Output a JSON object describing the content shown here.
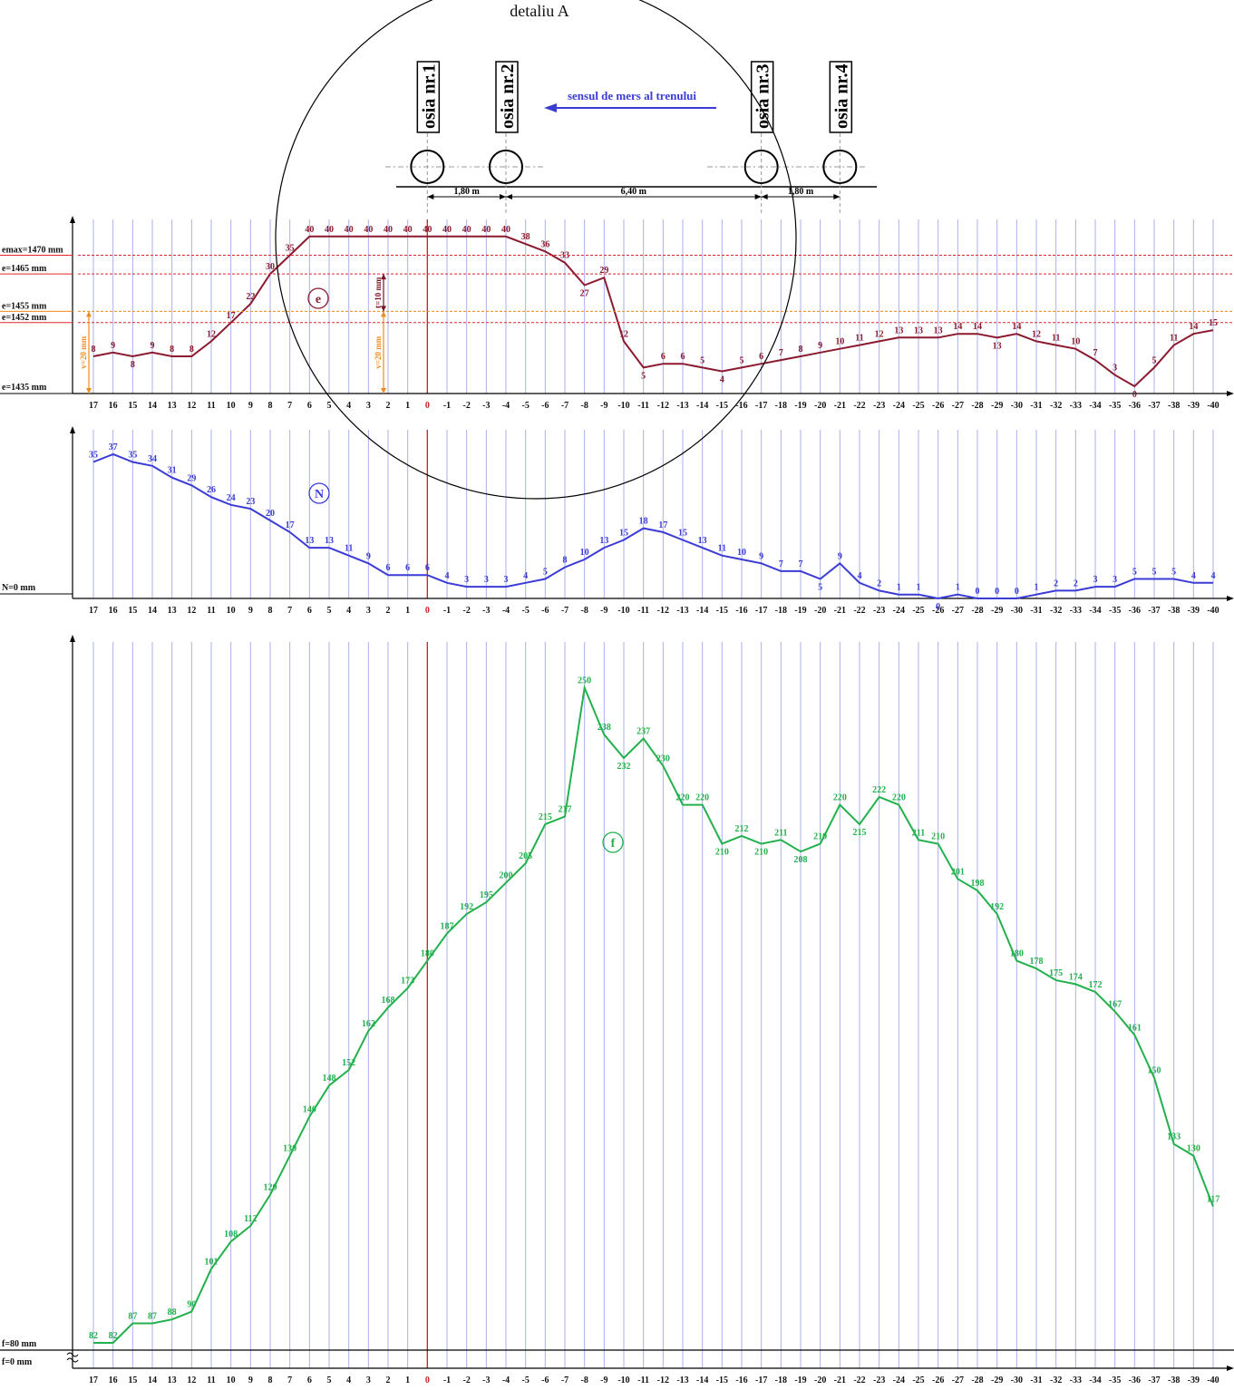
{
  "title": "detaliu A",
  "chart_data": [
    {
      "type": "schematic",
      "axles": [
        "osia nr.4",
        "osia nr.3",
        "osia nr.2",
        "osia nr.1"
      ],
      "direction_label": "sensul de mers al trenului",
      "spacings": [
        "1,80 m",
        "6,40 m",
        "1,80 m"
      ]
    },
    {
      "type": "line",
      "marker": "e",
      "x": [
        17,
        16,
        15,
        14,
        13,
        12,
        11,
        10,
        9,
        8,
        7,
        6,
        5,
        4,
        3,
        2,
        1,
        0,
        -1,
        -2,
        -3,
        -4,
        -5,
        -6,
        -7,
        -8,
        -9,
        -10,
        -11,
        -12,
        -13,
        -14,
        -15,
        -16,
        -17,
        -18,
        -19,
        -20,
        -21,
        -22,
        -23,
        -24,
        -25,
        -26,
        -27,
        -28,
        -29,
        -30,
        -31,
        -32,
        -33,
        -34,
        -35,
        -36,
        -37,
        -38,
        -39,
        -40
      ],
      "values": [
        8,
        9,
        8,
        9,
        8,
        8,
        12,
        17,
        22,
        30,
        35,
        40,
        40,
        40,
        40,
        40,
        40,
        40,
        40,
        40,
        40,
        40,
        38,
        36,
        33,
        27,
        29,
        12,
        5,
        6,
        6,
        5,
        4,
        5,
        6,
        7,
        8,
        9,
        10,
        11,
        12,
        13,
        13,
        13,
        14,
        14,
        13,
        14,
        12,
        11,
        10,
        7,
        3,
        0,
        5,
        11,
        14,
        15
      ],
      "ref_lines": [
        {
          "label": "emax=1470 mm",
          "value": 35,
          "color": "#e0282e"
        },
        {
          "label": "e=1465 mm",
          "value": 30,
          "color": "#e0282e"
        },
        {
          "label": "e=1455 mm",
          "value": 20,
          "color": "#f08a1c"
        },
        {
          "label": "e=1452 mm",
          "value": 17,
          "color": "#e0282e"
        }
      ],
      "base_label": "e=1435 mm",
      "annotations": [
        "v=20 mm",
        "t=10 mm",
        "v=20 mm"
      ],
      "color": "#8b1a2f"
    },
    {
      "type": "line",
      "marker": "N",
      "x": [
        17,
        16,
        15,
        14,
        13,
        12,
        11,
        10,
        9,
        8,
        7,
        6,
        5,
        4,
        3,
        2,
        1,
        0,
        -1,
        -2,
        -3,
        -4,
        -5,
        -6,
        -7,
        -8,
        -9,
        -10,
        -11,
        -12,
        -13,
        -14,
        -15,
        -16,
        -17,
        -18,
        -19,
        -20,
        -21,
        -22,
        -23,
        -24,
        -25,
        -26,
        -27,
        -28,
        -29,
        -30,
        -31,
        -32,
        -33,
        -34,
        -35,
        -36,
        -37,
        -38,
        -39,
        -40
      ],
      "values": [
        35,
        37,
        35,
        34,
        31,
        29,
        26,
        24,
        23,
        20,
        17,
        13,
        13,
        11,
        9,
        6,
        6,
        6,
        4,
        3,
        3,
        3,
        4,
        5,
        8,
        10,
        13,
        15,
        18,
        17,
        15,
        13,
        11,
        10,
        9,
        7,
        7,
        5,
        9,
        4,
        2,
        1,
        1,
        0,
        1,
        0,
        0,
        0,
        1,
        2,
        2,
        3,
        3,
        5,
        5,
        5,
        4,
        4
      ],
      "base_label": "N=0 mm",
      "color": "#3b3bd6"
    },
    {
      "type": "line",
      "marker": "f",
      "x": [
        17,
        16,
        15,
        14,
        13,
        12,
        11,
        10,
        9,
        8,
        7,
        6,
        5,
        4,
        3,
        2,
        1,
        0,
        -1,
        -2,
        -3,
        -4,
        -5,
        -6,
        -7,
        -8,
        -9,
        -10,
        -11,
        -12,
        -13,
        -14,
        -15,
        -16,
        -17,
        -18,
        -19,
        -20,
        -21,
        -22,
        -23,
        -24,
        -25,
        -26,
        -27,
        -28,
        -29,
        -30,
        -31,
        -32,
        -33,
        -34,
        -35,
        -36,
        -37,
        -38,
        -39,
        -40
      ],
      "values": [
        82,
        82,
        87,
        87,
        88,
        90,
        101,
        108,
        112,
        120,
        130,
        140,
        148,
        152,
        162,
        168,
        173,
        180,
        187,
        192,
        195,
        200,
        205,
        215,
        217,
        250,
        238,
        232,
        237,
        230,
        220,
        220,
        210,
        212,
        210,
        211,
        208,
        210,
        220,
        215,
        222,
        220,
        211,
        210,
        201,
        198,
        192,
        180,
        178,
        175,
        174,
        172,
        167,
        161,
        150,
        133,
        130,
        117
      ],
      "base_label": "f=80 mm",
      "axis_label": "f=0 mm",
      "color": "#22b14c"
    }
  ]
}
